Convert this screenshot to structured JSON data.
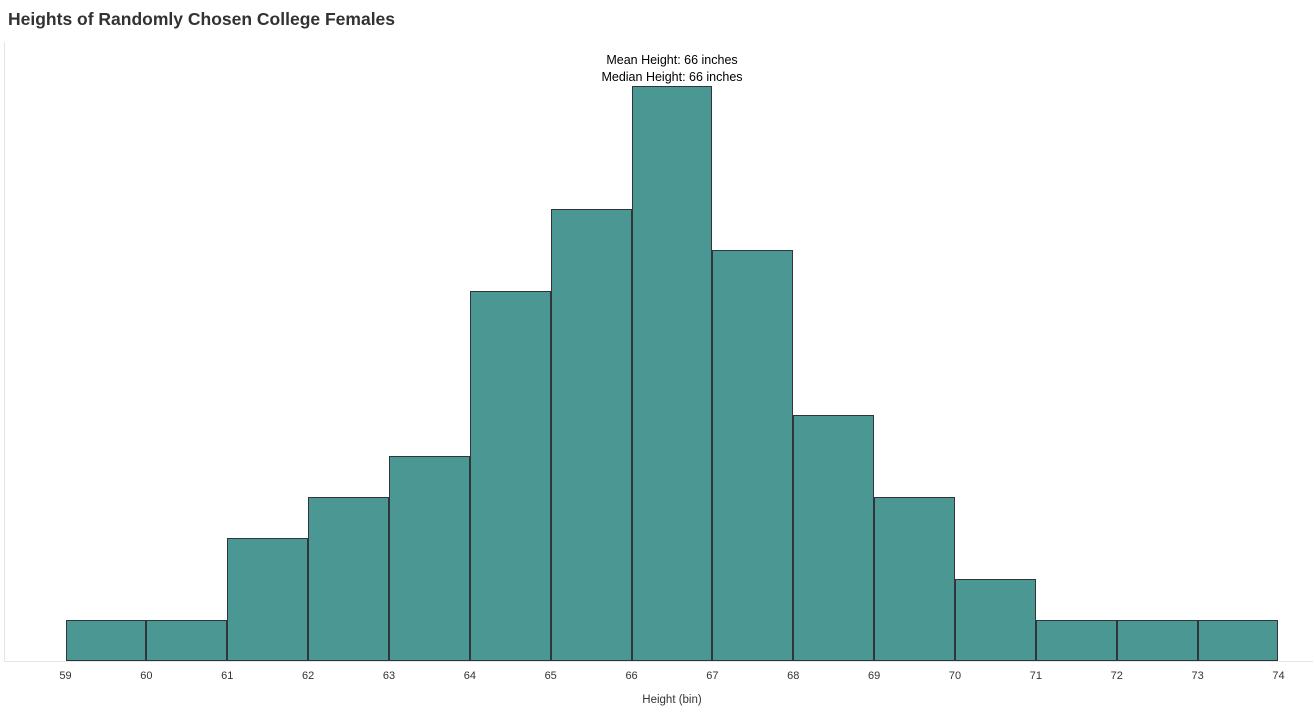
{
  "header": {
    "title": "Heights of Randomly Chosen College Females"
  },
  "annotation": {
    "lines": [
      "Mean Height: 66 inches",
      "Median Height: 66 inches"
    ]
  },
  "x_axis": {
    "title": "Height (bin)",
    "tick_labels": [
      "59",
      "60",
      "61",
      "62",
      "63",
      "64",
      "65",
      "66",
      "67",
      "68",
      "69",
      "70",
      "71",
      "72",
      "73",
      "74"
    ]
  },
  "colors": {
    "bar_fill": "#4a9793",
    "bar_border": "#2f3539",
    "axis_line": "#e4e4e4",
    "title_text": "#323232",
    "tick_text": "#333333",
    "annotation_text": "#000000"
  },
  "chart_data": {
    "type": "bar",
    "subtype": "histogram",
    "title": "Heights of Randomly Chosen College Females",
    "xlabel": "Height (bin)",
    "ylabel": "",
    "bin_edges": [
      59,
      60,
      61,
      62,
      63,
      64,
      65,
      66,
      67,
      68,
      69,
      70,
      71,
      72,
      73,
      74
    ],
    "categories": [
      "59-60",
      "60-61",
      "61-62",
      "62-63",
      "63-64",
      "64-65",
      "65-66",
      "66-67",
      "67-68",
      "68-69",
      "69-70",
      "70-71",
      "71-72",
      "72-73",
      "73-74"
    ],
    "values": [
      1,
      1,
      3,
      4,
      5,
      9,
      11,
      14,
      10,
      6,
      4,
      2,
      1,
      1,
      1
    ],
    "x_range": [
      59,
      74
    ],
    "ylim": [
      0,
      14
    ],
    "y_axis_shown": false,
    "grid": false,
    "legend": false,
    "annotations": [
      "Mean Height: 66 inches",
      "Median Height: 66 inches"
    ],
    "mean_inches": 66,
    "median_inches": 66
  }
}
